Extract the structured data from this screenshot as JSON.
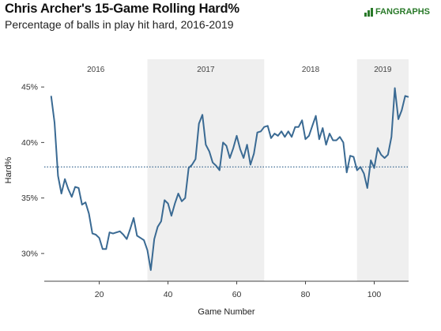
{
  "header": {
    "title": "Chris Archer's 15-Game Rolling Hard%",
    "subtitle": "Percentage of balls in play hit hard, 2016-2019",
    "logo_text": "FANGRAPHS"
  },
  "colors": {
    "line": "#3a6a93",
    "reference": "#2d5f8a",
    "season_shade": "#efefef"
  },
  "chart_data": {
    "type": "line",
    "title": "Chris Archer's 15-Game Rolling Hard%",
    "subtitle": "Percentage of balls in play hit hard, 2016-2019",
    "xlabel": "Game Number",
    "ylabel": "Hard%",
    "xlim": [
      4,
      110
    ],
    "ylim": [
      27.5,
      47.5
    ],
    "xticks": [
      20,
      40,
      60,
      80,
      100
    ],
    "yticks": [
      30,
      35,
      40,
      45
    ],
    "ytick_labels": [
      "30%",
      "35%",
      "40%",
      "45%"
    ],
    "reference_line": {
      "y": 37.8,
      "style": "dotted"
    },
    "seasons": [
      {
        "label": "2016",
        "start": 4,
        "end": 34,
        "shaded": false
      },
      {
        "label": "2017",
        "start": 34,
        "end": 68,
        "shaded": true
      },
      {
        "label": "2018",
        "start": 68,
        "end": 95,
        "shaded": false
      },
      {
        "label": "2019",
        "start": 95,
        "end": 110,
        "shaded": true
      }
    ],
    "series": [
      {
        "x": [
          6,
          7,
          8,
          9,
          10,
          11,
          12,
          13,
          14,
          15,
          16,
          17,
          18,
          19,
          20,
          21,
          22,
          23,
          24,
          25,
          26,
          27,
          28,
          29,
          30,
          31,
          32,
          33,
          34,
          35,
          36,
          37,
          38,
          39,
          40,
          41,
          42,
          43,
          44,
          45,
          46,
          47,
          48,
          49,
          50,
          51,
          52,
          53,
          54,
          55,
          56,
          57,
          58,
          59,
          60,
          61,
          62,
          63,
          64,
          65,
          66,
          67,
          68,
          69,
          70,
          71,
          72,
          73,
          74,
          75,
          76,
          77,
          78,
          79,
          80,
          81,
          82,
          83,
          84,
          85,
          86,
          87,
          88,
          89,
          90,
          91,
          92,
          93,
          94,
          95,
          96,
          97,
          98,
          99,
          100,
          101,
          102,
          103,
          104,
          105,
          106,
          107,
          108,
          109,
          110
        ],
        "y": [
          44.2,
          41.8,
          37.0,
          35.4,
          36.7,
          35.8,
          35.1,
          36.0,
          35.9,
          34.4,
          34.6,
          33.6,
          31.8,
          31.7,
          31.4,
          30.4,
          30.4,
          31.9,
          31.8,
          31.9,
          32.0,
          31.7,
          31.3,
          32.2,
          33.2,
          31.6,
          31.4,
          31.2,
          30.3,
          28.5,
          31.3,
          32.4,
          32.9,
          34.8,
          34.5,
          33.4,
          34.5,
          35.4,
          34.7,
          35.0,
          37.7,
          38.0,
          38.5,
          41.7,
          42.5,
          39.8,
          39.2,
          38.2,
          37.9,
          37.5,
          40.0,
          39.7,
          38.6,
          39.5,
          40.6,
          39.4,
          38.6,
          39.8,
          38.0,
          39.0,
          40.9,
          41.0,
          41.4,
          41.5,
          40.4,
          40.8,
          40.6,
          41.0,
          40.5,
          41.0,
          40.5,
          41.4,
          41.4,
          42.0,
          40.3,
          40.6,
          41.5,
          42.4,
          40.3,
          41.3,
          39.8,
          40.8,
          40.2,
          40.2,
          40.5,
          40.0,
          37.3,
          38.8,
          38.7,
          37.5,
          37.8,
          37.2,
          35.9,
          38.4,
          37.7,
          39.5,
          38.9,
          38.6,
          38.9,
          40.5,
          44.9,
          42.1,
          42.9,
          44.2,
          44.1
        ]
      }
    ]
  }
}
